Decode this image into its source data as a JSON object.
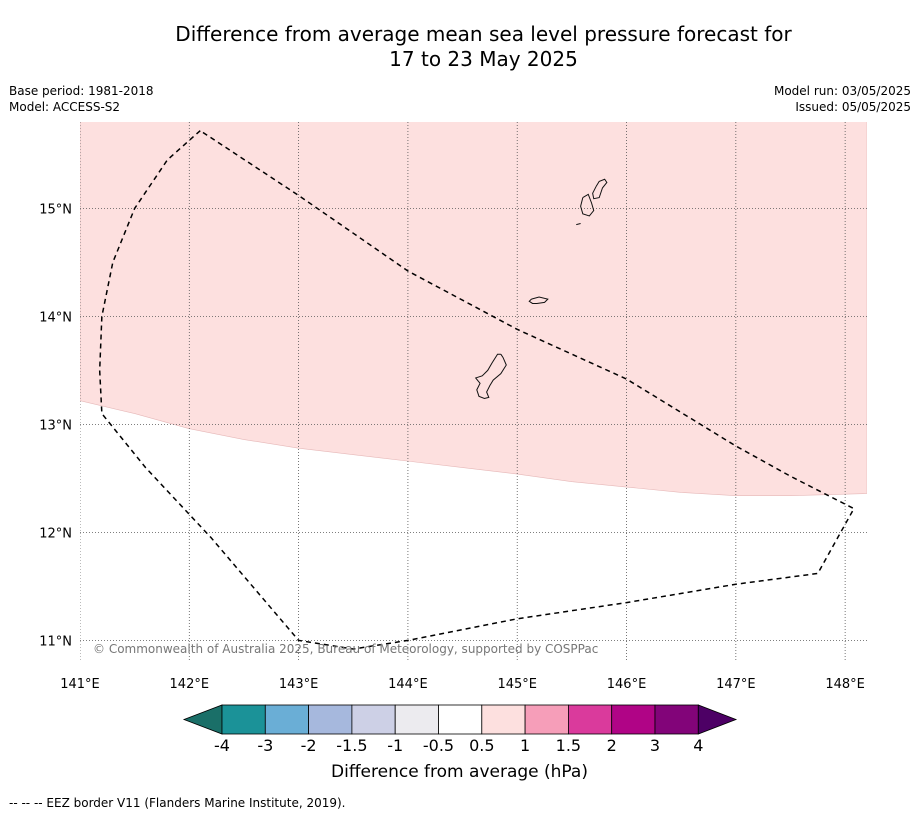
{
  "title_line1": "Difference from average mean sea level pressure forecast for",
  "title_line2": "17 to 23 May 2025",
  "meta_left": {
    "base_period": "Base period: 1981-2018",
    "model": "Model: ACCESS-S2"
  },
  "meta_right": {
    "model_run": "Model run: 03/05/2025",
    "issued": "Issued: 05/05/2025"
  },
  "map": {
    "lon_range": [
      141.0,
      148.2
    ],
    "lat_range": [
      10.8,
      15.8
    ],
    "lon_ticks": [
      {
        "value": 141,
        "label": "141°E"
      },
      {
        "value": 142,
        "label": "142°E"
      },
      {
        "value": 143,
        "label": "143°E"
      },
      {
        "value": 144,
        "label": "144°E"
      },
      {
        "value": 145,
        "label": "145°E"
      },
      {
        "value": 146,
        "label": "146°E"
      },
      {
        "value": 147,
        "label": "147°E"
      },
      {
        "value": 148,
        "label": "148°E"
      }
    ],
    "lat_ticks": [
      {
        "value": 11,
        "label": "11°N"
      },
      {
        "value": 12,
        "label": "12°N"
      },
      {
        "value": 13,
        "label": "13°N"
      },
      {
        "value": 14,
        "label": "14°N"
      },
      {
        "value": 15,
        "label": "15°N"
      }
    ],
    "anomaly_region": {
      "category": "0.5 to 1",
      "color": "#fde0df",
      "boundary": [
        [
          141.0,
          13.22
        ],
        [
          141.5,
          13.1
        ],
        [
          142.0,
          12.96
        ],
        [
          142.5,
          12.86
        ],
        [
          143.0,
          12.78
        ],
        [
          143.5,
          12.72
        ],
        [
          144.0,
          12.66
        ],
        [
          144.5,
          12.6
        ],
        [
          145.0,
          12.54
        ],
        [
          145.5,
          12.47
        ],
        [
          146.0,
          12.42
        ],
        [
          146.5,
          12.37
        ],
        [
          147.0,
          12.34
        ],
        [
          147.5,
          12.34
        ],
        [
          148.2,
          12.36
        ]
      ]
    },
    "eez_border": [
      [
        142.1,
        15.72
      ],
      [
        141.8,
        15.45
      ],
      [
        141.5,
        15.0
      ],
      [
        141.3,
        14.5
      ],
      [
        141.2,
        14.0
      ],
      [
        141.18,
        13.5
      ],
      [
        141.2,
        13.1
      ],
      [
        141.6,
        12.6
      ],
      [
        142.2,
        11.95
      ],
      [
        143.0,
        11.0
      ],
      [
        143.5,
        10.92
      ],
      [
        144.0,
        11.0
      ],
      [
        145.0,
        11.2
      ],
      [
        146.0,
        11.35
      ],
      [
        147.0,
        11.52
      ],
      [
        147.75,
        11.62
      ],
      [
        148.08,
        12.22
      ],
      [
        147.5,
        12.52
      ],
      [
        147.0,
        12.8
      ],
      [
        146.0,
        13.42
      ],
      [
        145.0,
        13.88
      ],
      [
        144.0,
        14.42
      ],
      [
        143.0,
        15.12
      ],
      [
        142.1,
        15.72
      ]
    ],
    "islands": [
      [
        [
          144.85,
          13.65
        ],
        [
          144.87,
          13.62
        ],
        [
          144.9,
          13.55
        ],
        [
          144.85,
          13.47
        ],
        [
          144.78,
          13.41
        ],
        [
          144.75,
          13.36
        ],
        [
          144.72,
          13.3
        ],
        [
          144.74,
          13.25
        ],
        [
          144.7,
          13.24
        ],
        [
          144.65,
          13.26
        ],
        [
          144.63,
          13.32
        ],
        [
          144.66,
          13.38
        ],
        [
          144.62,
          13.43
        ],
        [
          144.68,
          13.45
        ],
        [
          144.73,
          13.5
        ],
        [
          144.77,
          13.57
        ],
        [
          144.82,
          13.65
        ],
        [
          144.85,
          13.65
        ]
      ],
      [
        [
          145.13,
          14.16
        ],
        [
          145.2,
          14.18
        ],
        [
          145.28,
          14.16
        ],
        [
          145.25,
          14.13
        ],
        [
          145.18,
          14.12
        ],
        [
          145.14,
          14.12
        ],
        [
          145.11,
          14.14
        ],
        [
          145.13,
          14.16
        ]
      ],
      [
        [
          145.6,
          15.1
        ],
        [
          145.65,
          15.13
        ],
        [
          145.68,
          15.05
        ],
        [
          145.7,
          14.98
        ],
        [
          145.66,
          14.93
        ],
        [
          145.6,
          14.95
        ],
        [
          145.58,
          15.02
        ],
        [
          145.6,
          15.1
        ]
      ],
      [
        [
          145.72,
          15.2
        ],
        [
          145.75,
          15.25
        ],
        [
          145.8,
          15.27
        ],
        [
          145.82,
          15.24
        ],
        [
          145.78,
          15.19
        ],
        [
          145.75,
          15.1
        ],
        [
          145.7,
          15.09
        ],
        [
          145.69,
          15.14
        ],
        [
          145.72,
          15.2
        ]
      ],
      [
        [
          145.54,
          14.85
        ],
        [
          145.58,
          14.86
        ]
      ]
    ],
    "copyright": "© Commonwealth of Australia 2025, Bureau of Meteorology, supported by COSPPac"
  },
  "colorbar": {
    "label": "Difference from average (hPa)",
    "colors": [
      "#1a6f68",
      "#1b9298",
      "#6aaed6",
      "#a6b8dd",
      "#cdd0e6",
      "#ecebef",
      "#ffffff",
      "#fde0df",
      "#f69eb9",
      "#da3a9c",
      "#b00486",
      "#820479",
      "#4d0065"
    ],
    "tick_labels": [
      "-4",
      "-3",
      "-2",
      "-1.5",
      "-1",
      "-0.5",
      "0.5",
      "1",
      "1.5",
      "2",
      "3",
      "4"
    ]
  },
  "footnote": "--  --  -- EEZ border V11 (Flanders Marine Institute, 2019)."
}
